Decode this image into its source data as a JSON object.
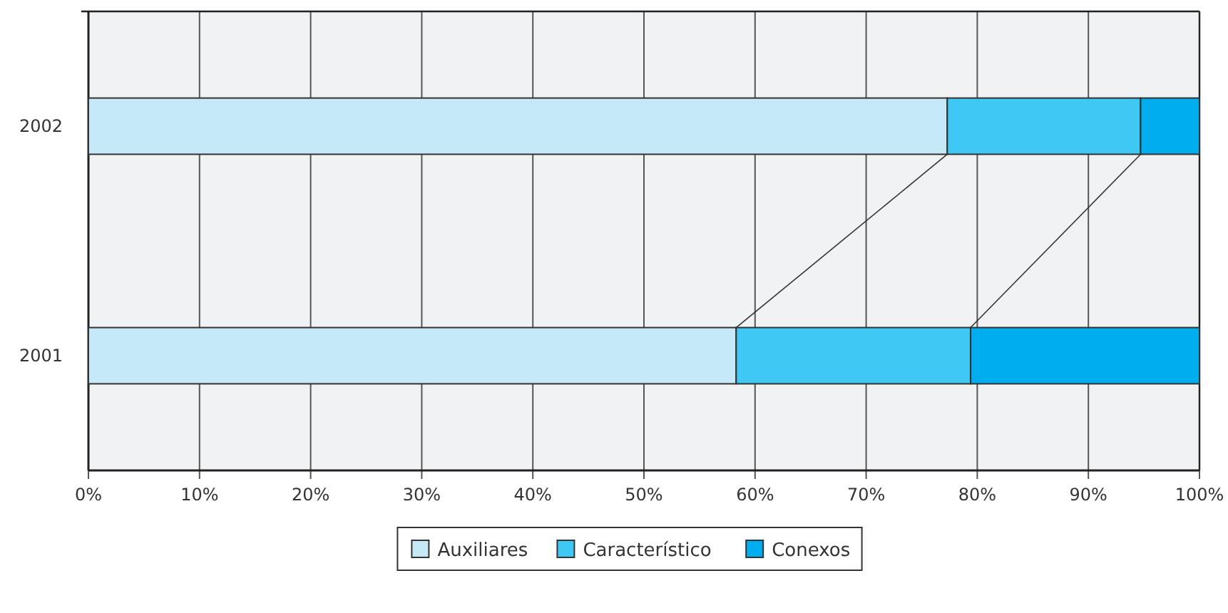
{
  "chart_data": {
    "type": "bar",
    "orientation": "horizontal",
    "stacked": true,
    "categories": [
      "2002",
      "2001"
    ],
    "series": [
      {
        "name": "Auxiliares",
        "color": "#c6e9f8",
        "values": [
          77.3,
          58.3
        ]
      },
      {
        "name": "Característico",
        "color": "#40c8f4",
        "values": [
          17.4,
          21.1
        ]
      },
      {
        "name": "Conexos",
        "color": "#00aeef",
        "values": [
          5.3,
          20.6
        ]
      }
    ],
    "xlim": [
      0,
      100
    ],
    "xticks": [
      {
        "value": 0,
        "label": "0%"
      },
      {
        "value": 10,
        "label": "10%"
      },
      {
        "value": 20,
        "label": "20%"
      },
      {
        "value": 30,
        "label": "30%"
      },
      {
        "value": 40,
        "label": "40%"
      },
      {
        "value": 50,
        "label": "50%"
      },
      {
        "value": 60,
        "label": "60%"
      },
      {
        "value": 70,
        "label": "70%"
      },
      {
        "value": 80,
        "label": "80%"
      },
      {
        "value": 90,
        "label": "90%"
      },
      {
        "value": 100,
        "label": "100%"
      }
    ],
    "grid": "x",
    "legend": "bottom"
  }
}
